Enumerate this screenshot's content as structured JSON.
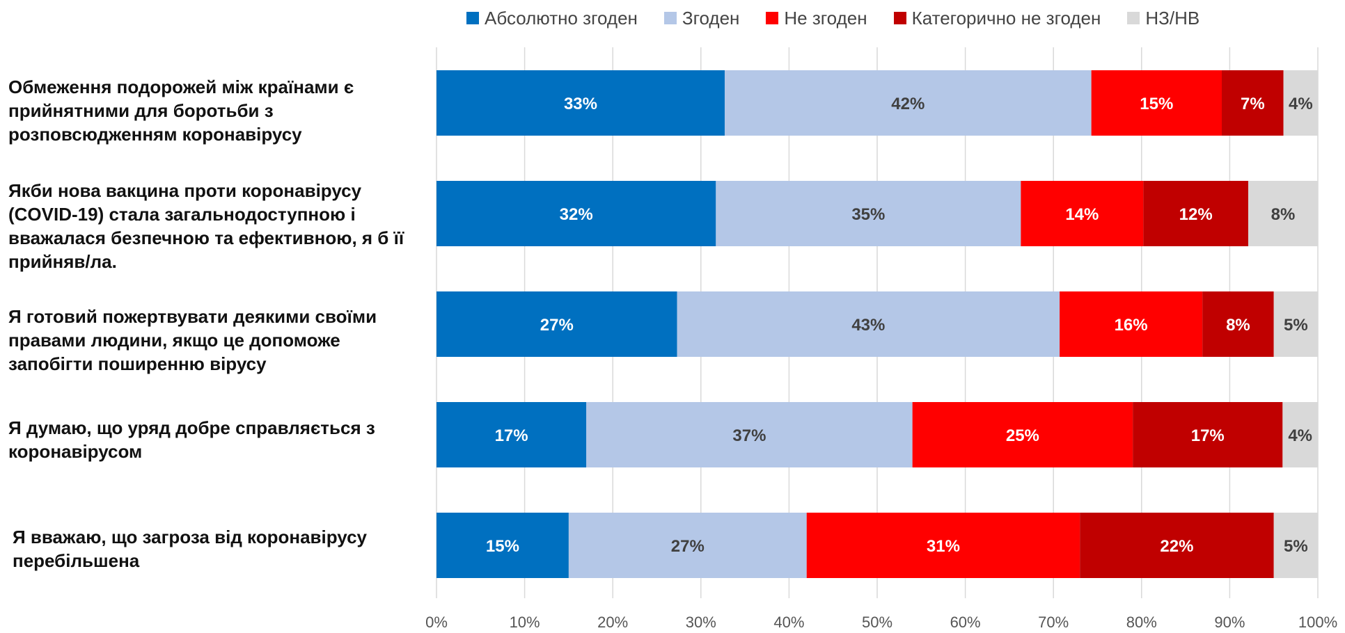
{
  "chart_data": {
    "type": "bar",
    "orientation": "horizontal",
    "stacked": true,
    "categories": [
      "Обмеження подорожей між країнами є прийнятними для боротьби з розповсюдженням коронавірусу",
      "Якби нова вакцина проти коронавірусу (COVID-19) стала загальнодоступною і вважалася безпечною та ефективною, я б її прийняв/ла.",
      "Я готовий пожертвувати деякими своїми правами людини, якщо це допоможе запобігти поширенню вірусу",
      "Я думаю, що уряд добре справляється з коронавірусом",
      "Я вважаю, що загроза від коронавірусу перебільшена"
    ],
    "series": [
      {
        "name": "Абсолютно згоден",
        "color": "#0070C0",
        "label_color": "#FFFFFF",
        "values": [
          32.7,
          31.7,
          27.3,
          17.0,
          15.0
        ],
        "labels": [
          "33%",
          "32%",
          "27%",
          "17%",
          "15%"
        ]
      },
      {
        "name": "Згоден",
        "color": "#B4C7E7",
        "label_color": "#404040",
        "values": [
          41.6,
          34.6,
          43.4,
          37.0,
          27.0
        ],
        "labels": [
          "42%",
          "35%",
          "43%",
          "37%",
          "27%"
        ]
      },
      {
        "name": "Не згоден",
        "color": "#FF0000",
        "label_color": "#FFFFFF",
        "values": [
          14.8,
          13.9,
          16.2,
          25.0,
          31.0
        ],
        "labels": [
          "15%",
          "14%",
          "16%",
          "25%",
          "31%"
        ]
      },
      {
        "name": "Категорично не згоден",
        "color": "#C00000",
        "label_color": "#FFFFFF",
        "values": [
          7.0,
          11.9,
          8.1,
          17.0,
          22.0
        ],
        "labels": [
          "7%",
          "12%",
          "8%",
          "17%",
          "22%"
        ]
      },
      {
        "name": "НЗ/НВ",
        "color": "#D9D9D9",
        "label_color": "#404040",
        "values": [
          3.9,
          7.9,
          5.0,
          4.0,
          5.0
        ],
        "labels": [
          "4%",
          "8%",
          "5%",
          "4%",
          "5%"
        ]
      }
    ],
    "x_ticks": [
      "0%",
      "10%",
      "20%",
      "30%",
      "40%",
      "50%",
      "60%",
      "70%",
      "80%",
      "90%",
      "100%"
    ],
    "xlim": [
      0,
      100
    ],
    "grid": true,
    "legend_position": "top"
  },
  "row_labels": [
    "Обмеження подорожей між країнами є прийнятними для боротьби з розповсюдженням коронавірусу",
    "Якби нова вакцина проти коронавірусу (COVID-19) стала загальнодоступною і вважалася безпечною та ефективною, я б її прийняв/ла.",
    "Я готовий пожертвувати деякими своїми правами людини, якщо це допоможе запобігти поширенню вірусу",
    "Я думаю, що уряд добре справляється з коронавірусом",
    "Я вважаю, що загроза від коронавірусу перебільшена"
  ],
  "legend": [
    {
      "label": "Абсолютно згоден",
      "color": "#0070C0"
    },
    {
      "label": "Згоден",
      "color": "#B4C7E7"
    },
    {
      "label": "Не згоден",
      "color": "#FF0000"
    },
    {
      "label": "Категорично не згоден",
      "color": "#C00000"
    },
    {
      "label": "НЗ/НВ",
      "color": "#D9D9D9"
    }
  ]
}
